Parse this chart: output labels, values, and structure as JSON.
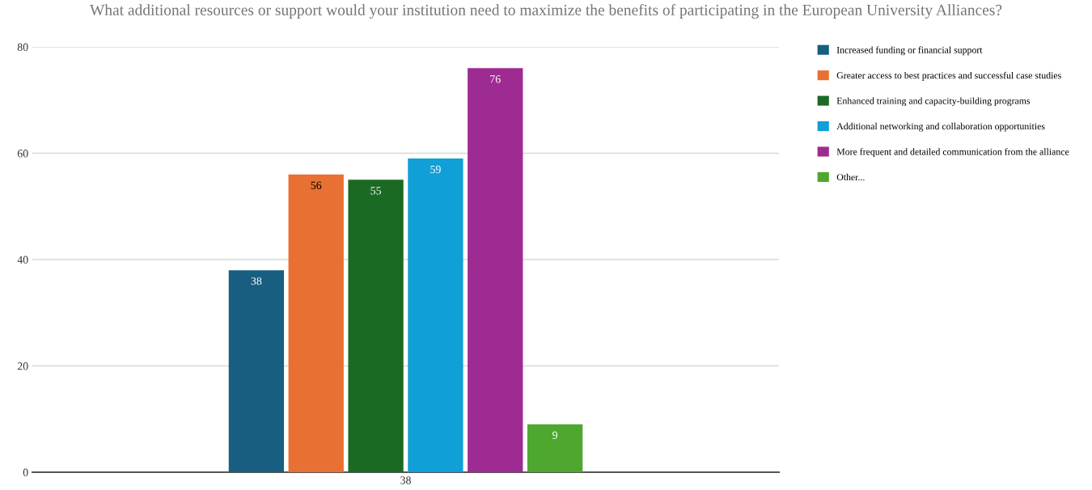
{
  "chart_data": {
    "type": "bar",
    "title": "What additional resources or support would your institution need to maximize the benefits of participating in the European University Alliances?",
    "categories": [
      "38"
    ],
    "series": [
      {
        "name": "Increased funding or financial support",
        "color": "#175e80",
        "values": [
          38
        ]
      },
      {
        "name": "Greater access to best practices and successful case studies",
        "color": "#e87033",
        "values": [
          56
        ]
      },
      {
        "name": "Enhanced training and capacity-building programs",
        "color": "#1b6a23",
        "values": [
          55
        ]
      },
      {
        "name": "Additional networking and collaboration opportunities",
        "color": "#109fd6",
        "values": [
          59
        ]
      },
      {
        "name": "More frequent and detailed communication from the alliance",
        "color": "#9e2b92",
        "values": [
          76
        ]
      },
      {
        "name": "Other...",
        "color": "#4ea72e",
        "values": [
          9
        ]
      }
    ],
    "ylim": [
      0,
      80
    ],
    "yticks": [
      0,
      20,
      40,
      60,
      80
    ],
    "grid": "y",
    "legend": "top right",
    "data_labels": true
  }
}
